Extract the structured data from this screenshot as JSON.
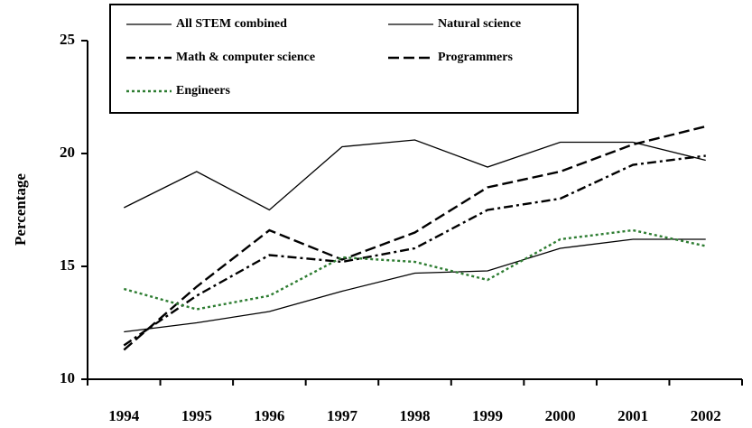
{
  "chart_data": {
    "type": "line",
    "y_label": "Percentage",
    "categories": [
      "1994",
      "1995",
      "1996",
      "1997",
      "1998",
      "1999",
      "2000",
      "2001",
      "2002"
    ],
    "ylim": [
      10,
      25
    ],
    "yticks": [
      10,
      15,
      20,
      25
    ],
    "series": [
      {
        "name": "All STEM combined",
        "color": "#000000",
        "dash": "solid",
        "values": [
          12.1,
          12.5,
          13.0,
          13.9,
          14.7,
          14.8,
          15.8,
          16.2,
          16.2
        ]
      },
      {
        "name": "Natural science",
        "color": "#000000",
        "dash": "solid",
        "values": [
          17.6,
          19.2,
          17.5,
          20.3,
          20.6,
          19.4,
          20.5,
          20.5,
          19.7
        ]
      },
      {
        "name": "Math & computer science",
        "color": "#000000",
        "dash": "dashdot",
        "values": [
          11.5,
          13.7,
          15.5,
          15.2,
          15.8,
          17.5,
          18.0,
          19.5,
          19.9
        ]
      },
      {
        "name": "Programmers",
        "color": "#000000",
        "dash": "dash",
        "values": [
          11.3,
          14.1,
          16.6,
          15.3,
          16.5,
          18.5,
          19.2,
          20.4,
          21.2
        ]
      },
      {
        "name": "Engineers",
        "color": "#2e7d32",
        "dash": "dot",
        "values": [
          14.0,
          13.1,
          13.7,
          15.4,
          15.2,
          14.4,
          16.2,
          16.6,
          15.9
        ]
      }
    ]
  }
}
